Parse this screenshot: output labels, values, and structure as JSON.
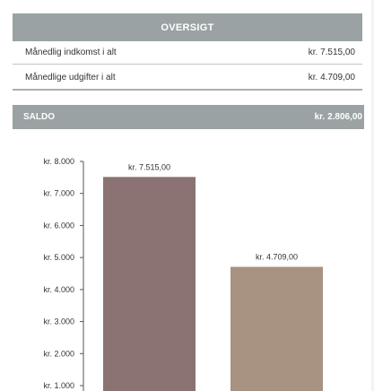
{
  "overview": {
    "title": "OVERSIGT",
    "rows": [
      {
        "label": "Månedlig indkomst i alt",
        "value": "kr. 7.515,00"
      },
      {
        "label": "Månedlige udgifter i alt",
        "value": "kr. 4.709,00"
      }
    ]
  },
  "saldo": {
    "label": "SALDO",
    "value": "kr. 2.806,00"
  },
  "colors": {
    "header_bg": "#9aa2a3",
    "bar_income": "#8a7372",
    "bar_expense": "#a89282"
  },
  "chart_data": {
    "type": "bar",
    "title": "",
    "xlabel": "",
    "ylabel": "",
    "categories": [
      "",
      ""
    ],
    "values": [
      7515,
      4709
    ],
    "data_labels": [
      "kr. 7.515,00",
      "kr. 4.709,00"
    ],
    "y_ticks": [
      1000,
      2000,
      3000,
      4000,
      5000,
      6000,
      7000,
      8000
    ],
    "y_tick_labels": [
      "kr. 1.000",
      "kr. 2.000",
      "kr. 3.000",
      "kr. 4.000",
      "kr. 5.000",
      "kr. 6.000",
      "kr. 7.000",
      "kr. 8.000"
    ],
    "ylim": [
      0,
      8000
    ],
    "grid": false,
    "legend": "none"
  }
}
